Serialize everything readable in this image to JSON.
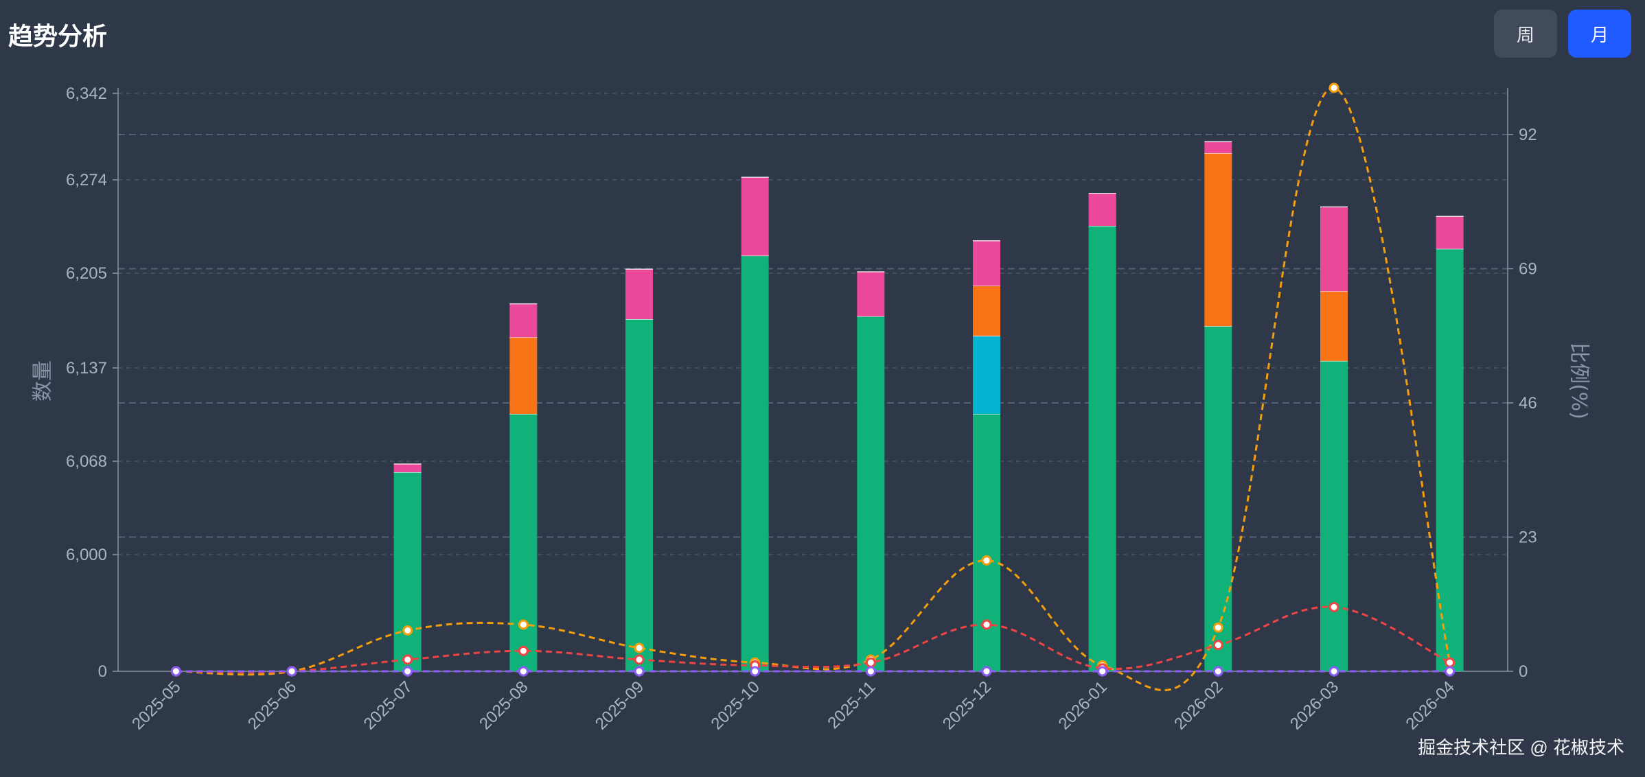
{
  "header": {
    "title": "趋势分析",
    "week_label": "周",
    "month_label": "月"
  },
  "watermark": "掘金技术社区 @ 花椒技术",
  "colors": {
    "background": "#2e3848",
    "green": "#10b27a",
    "cyan": "#06b2d2",
    "orange": "#f97316",
    "pink": "#ec4899",
    "ratio_orange": "#f59e0b",
    "ratio_red": "#ef4444",
    "ratio_purple": "#8b5cf6",
    "active_button": "#1f5bff"
  },
  "chart_data": {
    "type": "bar",
    "stacked": true,
    "categories": [
      "2025-05",
      "2025-06",
      "2025-07",
      "2025-08",
      "2025-09",
      "2025-10",
      "2025-11",
      "2025-12",
      "2026-01",
      "2026-02",
      "2026-03",
      "2026-04"
    ],
    "ylabel": "数量",
    "y2label": "比例(%)",
    "y_ticks": [
      "0",
      "6,000",
      "6,068",
      "6,137",
      "6,205",
      "6,274",
      "6,342"
    ],
    "y2_ticks": [
      "0",
      "23",
      "46",
      "69",
      "92"
    ],
    "y2lim": [
      0,
      100
    ],
    "series": [
      {
        "name": "green",
        "values": [
          0,
          0,
          6060,
          6103,
          6172,
          6218,
          6174,
          6103,
          6240,
          6167,
          6142,
          6223
        ]
      },
      {
        "name": "cyan",
        "values": [
          0,
          0,
          0,
          0,
          0,
          0,
          0,
          6160,
          0,
          0,
          0,
          0
        ]
      },
      {
        "name": "orange",
        "values": [
          0,
          0,
          0,
          6159,
          0,
          0,
          0,
          6196,
          0,
          6295,
          6192,
          0
        ]
      },
      {
        "name": "pink",
        "values": [
          0,
          0,
          6066,
          6183,
          6208,
          6276,
          6206,
          6229,
          6264,
          6304,
          6254,
          6247
        ]
      }
    ],
    "lines": [
      {
        "name": "orange-ratio",
        "color": "orange",
        "values": [
          0,
          0,
          7,
          8,
          4,
          1.5,
          2,
          19,
          1,
          7.5,
          100,
          1.5
        ]
      },
      {
        "name": "red-ratio",
        "color": "red",
        "values": [
          0,
          0,
          2,
          3.5,
          2,
          1,
          1.5,
          8,
          0.5,
          4.5,
          11,
          1.5
        ]
      },
      {
        "name": "purple-ratio",
        "color": "purple",
        "values": [
          0,
          0,
          0,
          0,
          0,
          0,
          0,
          0,
          0,
          0,
          0,
          0
        ]
      }
    ]
  }
}
